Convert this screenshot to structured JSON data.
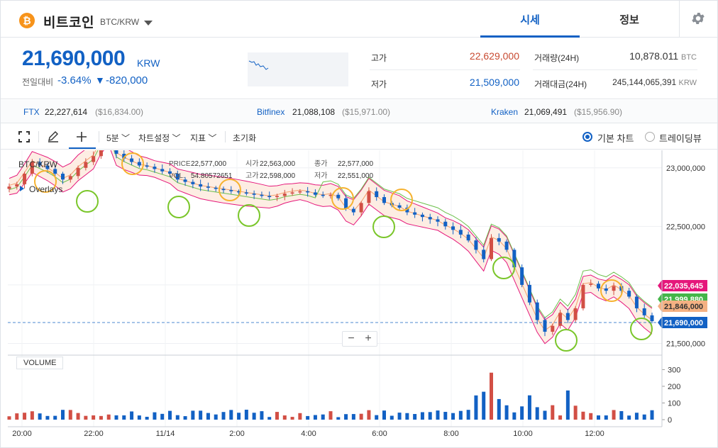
{
  "header": {
    "coin_icon": "₿",
    "coin_name": "비트코인",
    "pair": "BTC/KRW",
    "tabs": [
      "시세",
      "정보"
    ],
    "icons": [
      "bitcoin-icon",
      "caret-down-icon",
      "gear-icon"
    ]
  },
  "price": {
    "current": "21,690,000",
    "unit": "KRW",
    "change_label": "전일대비",
    "change_pct": "-3.64%",
    "change_arrow": "▼",
    "change_amount": "-820,000"
  },
  "stats": {
    "high_label": "고가",
    "high": "22,629,000",
    "low_label": "저가",
    "low": "21,509,000",
    "volume_label": "거래량(24H)",
    "volume": "10,878.011",
    "volume_unit": "BTC",
    "amount_label": "거래대금(24H)",
    "amount": "245,144,065,391",
    "amount_unit": "KRW"
  },
  "exchanges": [
    {
      "name": "FTX",
      "price": "22,227,614",
      "usd": "($16,834.00)"
    },
    {
      "name": "Bitfinex",
      "price": "21,088,108",
      "usd": "($15,971.00)"
    },
    {
      "name": "Kraken",
      "price": "21,069,491",
      "usd": "($15,956.90)"
    }
  ],
  "toolbar": {
    "interval": "5분",
    "chart_settings": "차트설정",
    "indicators": "지표",
    "reset": "초기화",
    "basic_chart": "기본 차트",
    "trading_view": "트레이딩뷰",
    "icons": [
      "fullscreen-icon",
      "pencil-icon",
      "crosshair-icon"
    ]
  },
  "chart_info": {
    "symbol": "BTC/KRW",
    "overlays": "Overlays",
    "price_label": "PRICE",
    "price": "22,577,000",
    "vol_label": "VOL.",
    "vol": "54.80572651",
    "open_label": "시가",
    "open": "22,563,000",
    "high_label": "고가",
    "high": "22,598,000",
    "close_label": "종가",
    "close": "22,577,000",
    "low_label": "저가",
    "low": "22,551,000",
    "volume_tag": "VOLUME",
    "zoom_out": "−",
    "zoom_in": "+"
  },
  "chart_data": {
    "type": "candlestick",
    "x_ticks": [
      "20:00",
      "22:00",
      "11/14",
      "2:00",
      "4:00",
      "6:00",
      "8:00",
      "10:00",
      "12:00"
    ],
    "y_ticks": [
      "23,000,000",
      "22,500,000",
      "22,000,000",
      "21,500,000"
    ],
    "y_range": [
      21400000,
      23150000
    ],
    "volume_ticks": [
      "300",
      "200",
      "100",
      "0"
    ],
    "volume_range": [
      0,
      340
    ],
    "price_tags": [
      {
        "label": "22,035,645",
        "color": "#e5177b"
      },
      {
        "label": "21,999,880",
        "color": "#44b649"
      },
      {
        "label": "21,846,000",
        "color": "#f4b183"
      },
      {
        "label": "21,690,000",
        "color": "#1261c4"
      }
    ],
    "close_series": [
      22840000,
      22860000,
      22950000,
      23050000,
      23020000,
      22990000,
      22950000,
      22900000,
      22930000,
      23000000,
      23050000,
      23100000,
      23230000,
      23300000,
      23120000,
      23080000,
      23050000,
      23020000,
      23010000,
      22990000,
      22970000,
      22950000,
      22900000,
      22880000,
      22860000,
      22840000,
      22830000,
      22820000,
      22810000,
      22800000,
      22790000,
      22780000,
      22770000,
      22760000,
      22750000,
      22760000,
      22780000,
      22790000,
      22800000,
      22790000,
      22770000,
      22760000,
      22770000,
      22740000,
      22650000,
      22620000,
      22700000,
      22800000,
      22750000,
      22700000,
      22680000,
      22660000,
      22620000,
      22600000,
      22580000,
      22560000,
      22540000,
      22500000,
      22470000,
      22430000,
      22380000,
      22300000,
      22220000,
      22400000,
      22370000,
      22300000,
      22150000,
      22000000,
      21850000,
      21700000,
      21600000,
      21650000,
      21760000,
      21700000,
      21800000,
      22000000,
      22010000,
      21970000,
      21950000,
      21990000,
      21950000,
      21900000,
      21800000,
      21740000,
      21690000
    ]
  }
}
